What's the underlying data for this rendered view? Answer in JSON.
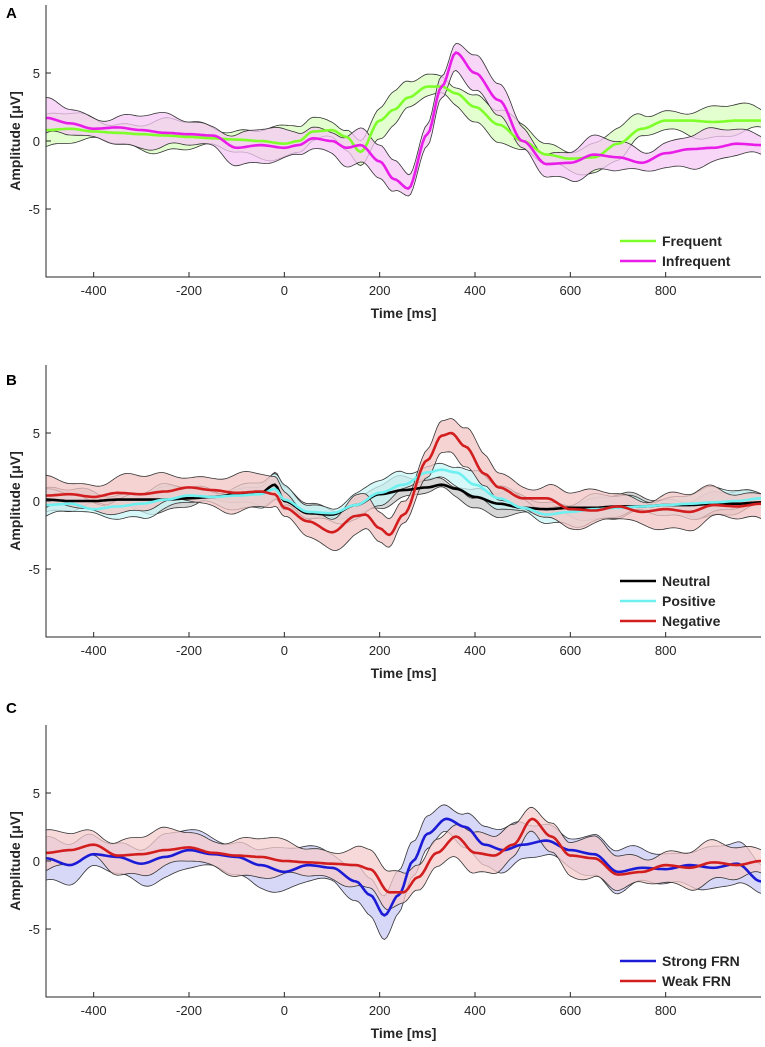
{
  "chart_data": [
    {
      "panel": "A",
      "type": "line",
      "xlabel": "Time [ms]",
      "ylabel": "Amplitude [μV]",
      "xlim": [
        -500,
        1000
      ],
      "ylim": [
        -10,
        10
      ],
      "xticks": [
        -400,
        -200,
        0,
        200,
        400,
        600,
        800
      ],
      "yticks": [
        -5,
        0,
        5
      ],
      "legend_position": "bottom-right",
      "series": [
        {
          "name": "Frequent",
          "color": "#7fff2a",
          "band_color": "#d9ffbf",
          "x": [
            -500,
            -450,
            -400,
            -350,
            -300,
            -250,
            -200,
            -150,
            -100,
            -50,
            0,
            30,
            60,
            100,
            130,
            160,
            200,
            230,
            260,
            300,
            330,
            360,
            400,
            450,
            500,
            550,
            600,
            650,
            700,
            750,
            800,
            850,
            900,
            950,
            1000
          ],
          "mean": [
            0.8,
            0.9,
            0.7,
            0.6,
            0.5,
            0.4,
            0.3,
            0.2,
            0.1,
            0,
            -0.2,
            0,
            0.7,
            0.8,
            0.3,
            -0.8,
            1.5,
            2.3,
            3.2,
            4,
            4,
            3.5,
            2.5,
            1.2,
            0,
            -1,
            -1.3,
            -1.2,
            -0.2,
            0.9,
            1.5,
            1.5,
            1.4,
            1.5,
            1.5
          ],
          "half_width": 0.9
        },
        {
          "name": "Infrequent",
          "color": "#e81ee8",
          "band_color": "#f6c8f6",
          "x": [
            -500,
            -450,
            -400,
            -350,
            -300,
            -250,
            -200,
            -150,
            -100,
            -50,
            0,
            30,
            60,
            100,
            130,
            160,
            200,
            230,
            260,
            300,
            330,
            360,
            400,
            450,
            500,
            550,
            600,
            650,
            700,
            750,
            800,
            850,
            900,
            950,
            1000
          ],
          "mean": [
            1.7,
            1.3,
            0.9,
            1,
            0.8,
            0.6,
            0.5,
            0.4,
            -0.5,
            -0.3,
            -0.5,
            -0.3,
            0.2,
            0,
            -0.5,
            -0.3,
            -1.5,
            -2.8,
            -3.5,
            0.5,
            4,
            6.5,
            5,
            3,
            0,
            -1.7,
            -1.6,
            -1,
            -1.2,
            -1.6,
            -0.9,
            -0.6,
            -0.5,
            -0.2,
            -0.3
          ],
          "half_width": 1.0
        }
      ]
    },
    {
      "panel": "B",
      "type": "line",
      "xlabel": "Time [ms]",
      "ylabel": "Amplitude [μV]",
      "xlim": [
        -500,
        1000
      ],
      "ylim": [
        -10,
        10
      ],
      "xticks": [
        -400,
        -200,
        0,
        200,
        400,
        600,
        800
      ],
      "yticks": [
        -5,
        0,
        5
      ],
      "legend_position": "bottom-right",
      "series": [
        {
          "name": "Neutral",
          "color": "#000000",
          "band_color": "#c8c8c8",
          "x": [
            -500,
            -450,
            -400,
            -350,
            -300,
            -250,
            -200,
            -150,
            -100,
            -50,
            -20,
            0,
            50,
            100,
            150,
            200,
            250,
            300,
            330,
            360,
            400,
            450,
            500,
            550,
            600,
            650,
            700,
            750,
            800,
            850,
            900,
            950,
            1000
          ],
          "mean": [
            0.1,
            0,
            0,
            0.1,
            0.1,
            0.1,
            0.2,
            0.3,
            0.5,
            0.6,
            1.2,
            0,
            -0.9,
            -1,
            -0.3,
            0.5,
            0.8,
            1,
            1.2,
            0.9,
            0.3,
            -0.2,
            -0.5,
            -0.6,
            -0.5,
            -0.5,
            -0.4,
            -0.4,
            -0.3,
            -0.3,
            -0.2,
            -0.2,
            -0.1
          ],
          "half_width": 0.6
        },
        {
          "name": "Positive",
          "color": "#6ef0f0",
          "band_color": "#c8f6f6",
          "x": [
            -500,
            -450,
            -400,
            -350,
            -300,
            -250,
            -200,
            -150,
            -100,
            -50,
            -20,
            0,
            50,
            100,
            150,
            200,
            250,
            300,
            330,
            360,
            400,
            450,
            500,
            550,
            600,
            650,
            700,
            750,
            800,
            850,
            900,
            950,
            1000
          ],
          "mean": [
            -0.3,
            -0.2,
            -0.6,
            -0.4,
            -0.2,
            0.1,
            0.4,
            0.3,
            0.4,
            0.5,
            0.9,
            0.1,
            -0.8,
            -0.9,
            -0.3,
            0.6,
            1.2,
            2.1,
            2.3,
            2.1,
            1.2,
            0.2,
            -0.5,
            -1,
            -0.8,
            -0.6,
            -0.5,
            -0.4,
            -0.3,
            -0.2,
            -0.1,
            0,
            0.2
          ],
          "half_width": 0.7
        },
        {
          "name": "Negative",
          "color": "#d21e1e",
          "band_color": "#f3c4c4",
          "x": [
            -500,
            -450,
            -400,
            -350,
            -300,
            -250,
            -200,
            -150,
            -100,
            -50,
            -20,
            0,
            50,
            100,
            150,
            170,
            200,
            220,
            250,
            300,
            330,
            350,
            380,
            420,
            450,
            500,
            550,
            600,
            650,
            700,
            750,
            800,
            850,
            900,
            950,
            1000
          ],
          "mean": [
            0.4,
            0.5,
            0.3,
            0.6,
            0.5,
            0.7,
            1,
            0.8,
            0.6,
            0.7,
            0.5,
            -0.5,
            -1.5,
            -2.3,
            -1.1,
            -1,
            -2,
            -2.5,
            -1,
            3,
            4.8,
            5,
            4,
            2,
            1,
            0.2,
            0.2,
            -0.6,
            -0.7,
            -0.4,
            -0.8,
            -0.6,
            -0.8,
            -0.3,
            -0.4,
            -0.2
          ],
          "half_width": 1.1
        }
      ]
    },
    {
      "panel": "C",
      "type": "line",
      "xlabel": "Time [ms]",
      "ylabel": "Amplitude [μV]",
      "xlim": [
        -500,
        1000
      ],
      "ylim": [
        -10,
        10
      ],
      "xticks": [
        -400,
        -200,
        0,
        200,
        400,
        600,
        800
      ],
      "yticks": [
        -5,
        0,
        5
      ],
      "legend_position": "bottom-right",
      "series": [
        {
          "name": "Strong FRN",
          "color": "#1c1cd6",
          "band_color": "#c9c9f4",
          "x": [
            -500,
            -450,
            -400,
            -350,
            -300,
            -250,
            -200,
            -150,
            -100,
            -50,
            0,
            50,
            100,
            150,
            180,
            210,
            240,
            270,
            300,
            340,
            380,
            420,
            460,
            500,
            550,
            600,
            650,
            700,
            750,
            800,
            850,
            900,
            950,
            1000
          ],
          "mean": [
            0.2,
            -0.3,
            0.5,
            0.3,
            -0.2,
            0.3,
            0.8,
            0.5,
            0.3,
            -0.3,
            -0.8,
            -0.3,
            -0.5,
            -1.5,
            -2.5,
            -4,
            -2.5,
            0,
            2,
            3.1,
            2.5,
            1.2,
            0.8,
            1.2,
            1.5,
            0.8,
            0.5,
            -0.8,
            -0.5,
            -0.6,
            -0.3,
            -0.5,
            -0.2,
            -1.5
          ],
          "half_width": 1.3
        },
        {
          "name": "Weak FRN",
          "color": "#d21e1e",
          "band_color": "#f6cccc",
          "x": [
            -500,
            -450,
            -400,
            -350,
            -300,
            -250,
            -200,
            -150,
            -100,
            -50,
            0,
            50,
            100,
            150,
            180,
            220,
            250,
            280,
            320,
            360,
            400,
            440,
            480,
            520,
            560,
            600,
            650,
            700,
            750,
            800,
            850,
            900,
            950,
            1000
          ],
          "mean": [
            0.6,
            0.8,
            1.2,
            0.4,
            0.5,
            0.8,
            1,
            0.6,
            0.4,
            0.3,
            0,
            -0.1,
            -0.2,
            -0.3,
            -0.6,
            -2.3,
            -2.3,
            -1.2,
            0.6,
            1.8,
            0.6,
            0.4,
            1.2,
            3.1,
            1.8,
            0.4,
            0.2,
            -1,
            -0.8,
            -0.3,
            -0.5,
            -0.1,
            -0.3,
            0
          ],
          "half_width": 1.2
        }
      ]
    }
  ]
}
